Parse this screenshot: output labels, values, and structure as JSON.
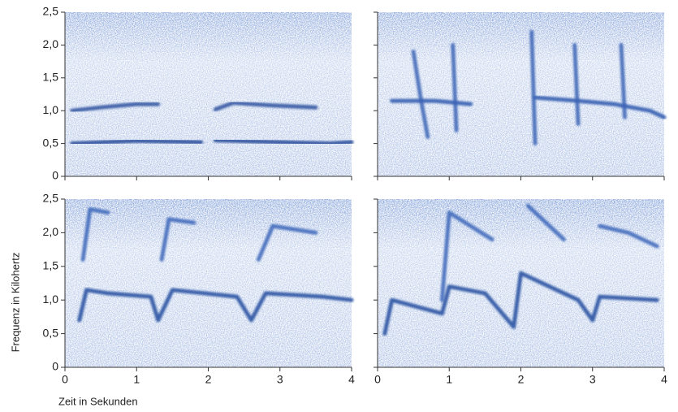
{
  "chart_data": [
    {
      "type": "spectrogram",
      "xlim": [
        0,
        4
      ],
      "ylim": [
        0,
        2.5
      ],
      "xticks": [
        0,
        1,
        2,
        3,
        4
      ],
      "show_xtick_labels": false,
      "yticks": [
        0,
        {
          "value": 0.5,
          "label": "0,5"
        },
        {
          "value": 1.0,
          "label": "1,0"
        },
        {
          "value": 1.5,
          "label": "1,5"
        },
        {
          "value": 2.0,
          "label": "2,0"
        },
        {
          "value": 2.5,
          "label": "2,5"
        }
      ],
      "show_ytick_labels": true,
      "series": [
        {
          "color": "#2a4f9e",
          "x": [
            0.1,
            0.5,
            1.0,
            1.3,
            1.95,
            2.1,
            2.35,
            2.9,
            3.5
          ],
          "values": [
            1.0,
            1.05,
            1.1,
            1.1,
            null,
            1.02,
            1.12,
            1.08,
            1.05
          ]
        },
        {
          "color": "#1f4596",
          "x": [
            0.1,
            1.0,
            1.9,
            2.0,
            2.1,
            3.0,
            3.7,
            4.0
          ],
          "values": [
            0.5,
            0.54,
            0.52,
            null,
            0.55,
            0.52,
            0.5,
            0.52
          ]
        }
      ]
    },
    {
      "type": "spectrogram",
      "xlim": [
        0,
        4
      ],
      "ylim": [
        0,
        2.5
      ],
      "xticks": [
        0,
        1,
        2,
        3,
        4
      ],
      "show_xtick_labels": false,
      "yticks": [
        0,
        {
          "value": 0.5,
          "label": "0,5"
        },
        {
          "value": 1.0,
          "label": "1,0"
        },
        {
          "value": 1.5,
          "label": "1,5"
        },
        {
          "value": 2.0,
          "label": "2,0"
        },
        {
          "value": 2.5,
          "label": "2,5"
        }
      ],
      "show_ytick_labels": false,
      "series": [
        {
          "color": "#2a56ad",
          "x": [
            0.2,
            0.8,
            1.3,
            1.6,
            2.2,
            2.8,
            3.3,
            3.8,
            4.0
          ],
          "values": [
            1.15,
            1.15,
            1.1,
            null,
            1.2,
            1.15,
            1.1,
            1.0,
            0.9
          ]
        },
        {
          "color": "#3a63b5",
          "x": [
            0.5,
            0.6,
            0.7,
            1.0,
            1.05,
            1.1,
            2.1,
            2.15,
            2.2,
            2.7,
            2.75,
            2.8,
            3.35,
            3.4,
            3.45
          ],
          "values": [
            1.9,
            1.2,
            0.6,
            null,
            2.0,
            0.7,
            null,
            2.2,
            0.5,
            null,
            2.0,
            0.8,
            null,
            2.0,
            0.9
          ]
        }
      ]
    },
    {
      "type": "spectrogram",
      "xlim": [
        0,
        4
      ],
      "ylim": [
        0,
        2.5
      ],
      "xticks": [
        0,
        1,
        2,
        3,
        4
      ],
      "show_xtick_labels": true,
      "yticks": [
        0,
        {
          "value": 0.5,
          "label": "0,5"
        },
        {
          "value": 1.0,
          "label": "1,0"
        },
        {
          "value": 1.5,
          "label": "1,5"
        },
        {
          "value": 2.0,
          "label": "2,0"
        },
        {
          "value": 2.5,
          "label": "2,5"
        }
      ],
      "show_ytick_labels": true,
      "xlabel": "Zeit in Sekunden",
      "ylabel": "Frequenz in Kilohertz",
      "series": [
        {
          "color": "#1f4a9e",
          "x": [
            0.2,
            0.3,
            0.6,
            1.2,
            1.3,
            1.5,
            2.4,
            2.6,
            2.8,
            3.6,
            4.0
          ],
          "values": [
            0.7,
            1.15,
            1.1,
            1.05,
            0.7,
            1.15,
            1.05,
            0.7,
            1.1,
            1.05,
            1.0
          ]
        },
        {
          "color": "#3b65b8",
          "x": [
            0.25,
            0.35,
            0.6,
            1.0,
            1.35,
            1.45,
            1.8,
            2.6,
            2.7,
            2.9,
            3.5
          ],
          "values": [
            1.6,
            2.35,
            2.3,
            null,
            1.6,
            2.2,
            2.15,
            null,
            1.6,
            2.1,
            2.0
          ]
        }
      ]
    },
    {
      "type": "spectrogram",
      "xlim": [
        0,
        4
      ],
      "ylim": [
        0,
        2.5
      ],
      "xticks": [
        0,
        1,
        2,
        3,
        4
      ],
      "show_xtick_labels": true,
      "yticks": [
        0,
        {
          "value": 0.5,
          "label": "0,5"
        },
        {
          "value": 1.0,
          "label": "1,0"
        },
        {
          "value": 1.5,
          "label": "1,5"
        },
        {
          "value": 2.0,
          "label": "2,0"
        },
        {
          "value": 2.5,
          "label": "2,5"
        }
      ],
      "show_ytick_labels": false,
      "series": [
        {
          "color": "#1f4a9e",
          "x": [
            0.1,
            0.2,
            0.9,
            1.0,
            1.5,
            1.9,
            2.0,
            2.8,
            3.0,
            3.1,
            3.9
          ],
          "values": [
            0.5,
            1.0,
            0.8,
            1.2,
            1.1,
            0.6,
            1.4,
            1.0,
            0.7,
            1.05,
            1.0
          ]
        },
        {
          "color": "#3b65b8",
          "x": [
            0.9,
            1.0,
            1.6,
            2.0,
            2.1,
            2.6,
            3.0,
            3.1,
            3.5,
            3.9
          ],
          "values": [
            1.0,
            2.3,
            1.9,
            null,
            2.4,
            1.9,
            null,
            2.1,
            2.0,
            1.8
          ]
        }
      ]
    }
  ]
}
